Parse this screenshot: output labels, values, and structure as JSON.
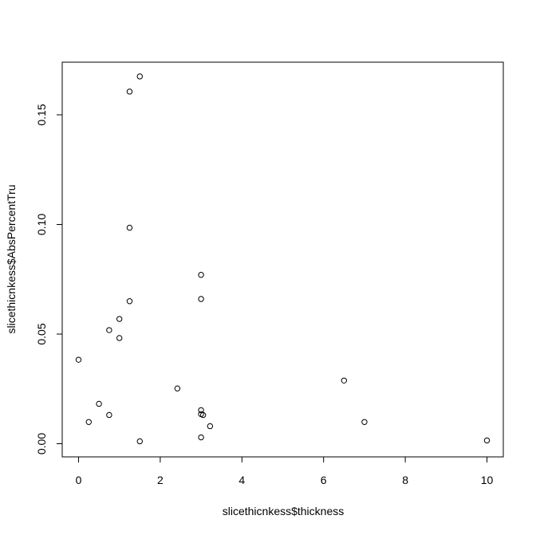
{
  "chart_data": {
    "type": "scatter",
    "xlabel": "slicethicnkess$thickness",
    "ylabel": "slicethicnkess$AbsPercentTru",
    "x": [
      0,
      0.25,
      0.5,
      0.75,
      0.75,
      1.0,
      1.0,
      1.25,
      1.25,
      1.25,
      1.5,
      1.5,
      2.42,
      3.0,
      3.0,
      3.0,
      3.0,
      3.05,
      3.0,
      3.22,
      6.5,
      7.0,
      10
    ],
    "values": [
      0.0383,
      0.0099,
      0.0182,
      0.0131,
      0.0518,
      0.0569,
      0.0482,
      0.1606,
      0.0985,
      0.065,
      0.1675,
      0.0011,
      0.0252,
      0.077,
      0.066,
      0.0153,
      0.0135,
      0.0131,
      0.0029,
      0.008,
      0.0288,
      0.0099,
      0.0015
    ],
    "color": "#000000",
    "xlim": [
      -0.4,
      10.4
    ],
    "ylim": [
      -0.006,
      0.174
    ],
    "xticks": [
      0,
      2,
      4,
      6,
      8,
      10
    ],
    "yticks": [
      {
        "value": 0,
        "label": "0.00"
      },
      0.05,
      {
        "value": 0.1,
        "label": "0.10"
      },
      0.15
    ]
  }
}
